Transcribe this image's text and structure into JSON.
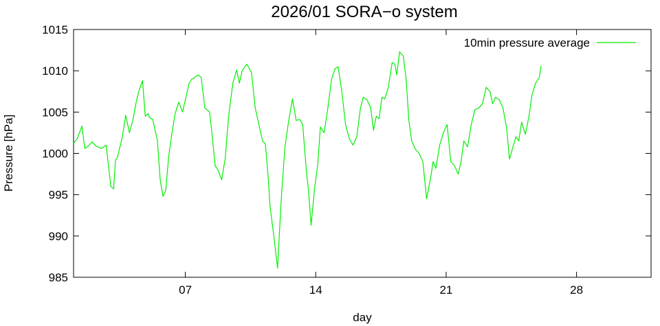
{
  "chart_data": {
    "type": "line",
    "title": "2026/01 SORA−o system",
    "xlabel": "day",
    "ylabel": "Pressure [hPa]",
    "xlim": [
      1,
      32
    ],
    "ylim": [
      985,
      1015
    ],
    "x_ticks": [
      7,
      14,
      21,
      28
    ],
    "x_tick_labels": [
      "07",
      "14",
      "21",
      "28"
    ],
    "y_ticks": [
      985,
      990,
      995,
      1000,
      1005,
      1010,
      1015
    ],
    "y_tick_labels": [
      "985",
      "990",
      "995",
      "1000",
      "1005",
      "1010",
      "1015"
    ],
    "grid": false,
    "legend_position": "top-right",
    "series": [
      {
        "name": "10min pressure average",
        "color": "#00ee00",
        "x": [
          1.0,
          1.2,
          1.45,
          1.6,
          1.75,
          2.0,
          2.2,
          2.5,
          2.75,
          3.0,
          3.15,
          3.25,
          3.35,
          3.6,
          3.8,
          4.0,
          4.2,
          4.35,
          4.5,
          4.7,
          4.85,
          5.0,
          5.1,
          5.25,
          5.5,
          5.65,
          5.8,
          5.95,
          6.1,
          6.25,
          6.45,
          6.65,
          6.85,
          7.0,
          7.2,
          7.35,
          7.45,
          7.55,
          7.7,
          7.85,
          8.05,
          8.3,
          8.45,
          8.6,
          8.75,
          8.95,
          9.15,
          9.25,
          9.35,
          9.55,
          9.75,
          9.9,
          10.05,
          10.3,
          10.55,
          10.75,
          10.95,
          11.15,
          11.3,
          11.45,
          11.55,
          11.75,
          11.95,
          12.15,
          12.35,
          12.55,
          12.75,
          12.95,
          13.15,
          13.3,
          13.5,
          13.6,
          13.75,
          13.95,
          14.1,
          14.25,
          14.45,
          14.65,
          14.85,
          15.05,
          15.2,
          15.4,
          15.6,
          15.8,
          16.0,
          16.2,
          16.4,
          16.55,
          16.75,
          16.95,
          17.1,
          17.25,
          17.4,
          17.55,
          17.7,
          17.9,
          18.1,
          18.25,
          18.35,
          18.5,
          18.7,
          18.85,
          19.0,
          19.15,
          19.35,
          19.55,
          19.75,
          19.95,
          20.15,
          20.3,
          20.45,
          20.65,
          20.85,
          21.05,
          21.25,
          21.45,
          21.65,
          21.8,
          21.95,
          22.15,
          22.35,
          22.55,
          22.75,
          22.95,
          23.15,
          23.35,
          23.5,
          23.65,
          23.85,
          24.05,
          24.25,
          24.4,
          24.55,
          24.75,
          24.9,
          25.05,
          25.25,
          25.45,
          25.6,
          25.8,
          26.0,
          26.1
        ],
        "values": [
          1001.2,
          1001.8,
          1003.3,
          1000.6,
          1000.8,
          1001.4,
          1000.9,
          1000.6,
          1001.0,
          996.0,
          995.7,
          999.2,
          999.5,
          1001.8,
          1004.6,
          1002.5,
          1004.2,
          1006.1,
          1007.5,
          1008.8,
          1004.5,
          1004.8,
          1004.3,
          1004.1,
          1001.6,
          996.8,
          994.8,
          995.5,
          999.5,
          1002.0,
          1004.8,
          1006.2,
          1005.0,
          1006.5,
          1008.5,
          1009.0,
          1009.1,
          1009.3,
          1009.5,
          1009.2,
          1005.5,
          1005.0,
          1002.0,
          998.5,
          998.0,
          996.8,
          999.5,
          1002.5,
          1005.0,
          1008.5,
          1010.1,
          1008.5,
          1010.0,
          1010.8,
          1009.8,
          1005.5,
          1003.5,
          1001.5,
          1001.1,
          997.0,
          993.5,
          990.0,
          986.1,
          994.5,
          1000.8,
          1004.0,
          1006.6,
          1004.0,
          1004.1,
          1003.5,
          997.8,
          995.8,
          991.3,
          996.0,
          998.5,
          1003.2,
          1002.5,
          1005.5,
          1009.0,
          1010.3,
          1010.5,
          1007.5,
          1003.5,
          1001.8,
          1001.0,
          1002.0,
          1005.5,
          1006.8,
          1006.5,
          1005.5,
          1002.8,
          1004.5,
          1004.2,
          1006.8,
          1006.6,
          1008.0,
          1011.0,
          1010.8,
          1009.5,
          1012.3,
          1011.8,
          1009.0,
          1004.0,
          1001.5,
          1000.5,
          1000.0,
          999.0,
          994.5,
          996.8,
          999.0,
          998.2,
          1001.0,
          1002.5,
          1003.5,
          999.0,
          998.5,
          997.5,
          999.0,
          1001.5,
          1000.8,
          1003.5,
          1005.3,
          1005.5,
          1006.0,
          1008.0,
          1007.5,
          1006.0,
          1006.8,
          1006.5,
          1005.5,
          1003.0,
          999.3,
          1000.5,
          1002.0,
          1001.5,
          1003.8,
          1002.3,
          1004.5,
          1007.0,
          1008.5,
          1009.2,
          1010.6
        ]
      }
    ]
  }
}
